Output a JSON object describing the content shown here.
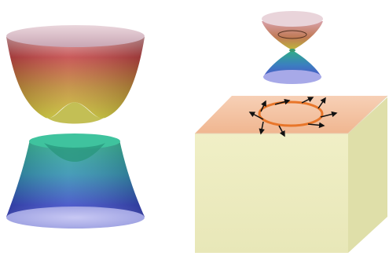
{
  "figure": {
    "left_panel": {
      "upper_band": "gapped-conduction-band",
      "lower_band": "gapped-valence-band"
    },
    "right_panel": {
      "dirac_cone": "surface-dirac-cone",
      "block": "topological-insulator-block",
      "spin_texture": "spin-momentum-locked-arrows",
      "spin_arrow_count": 9
    },
    "colors": {
      "band_red": "#c84a48",
      "band_yellow": "#c8c234",
      "band_teal": "#2aaa8a",
      "band_blue": "#3a50c8",
      "band_rim": "#b8b8ee",
      "block_front": "#ecebbf",
      "block_side": "#dedda8",
      "block_top": "#f3c9a8",
      "fermi_circle": "#e8762a",
      "arrow": "#111111"
    }
  }
}
